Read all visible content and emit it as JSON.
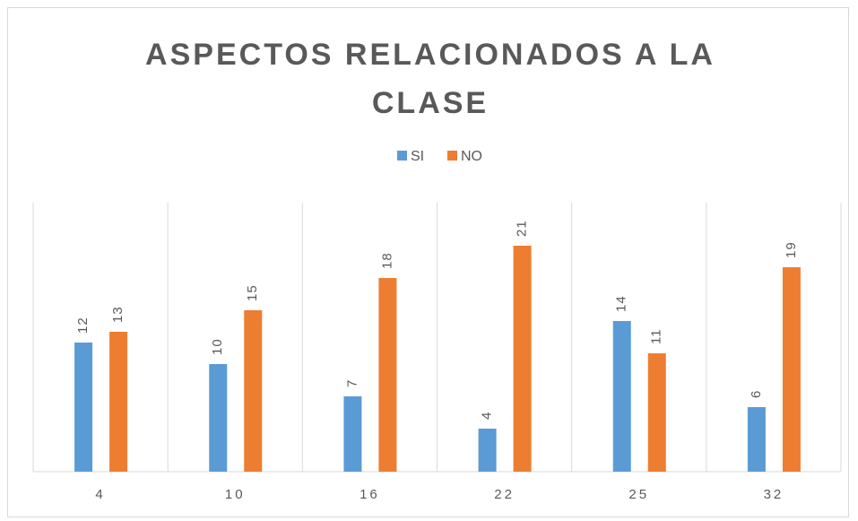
{
  "chart_data": {
    "type": "bar",
    "title": "ASPECTOS RELACIONADOS A LA CLASE",
    "categories": [
      "4",
      "10",
      "16",
      "22",
      "25",
      "32"
    ],
    "series": [
      {
        "name": "SI",
        "color": "#5b9bd5",
        "values": [
          12,
          10,
          7,
          4,
          14,
          6
        ]
      },
      {
        "name": "NO",
        "color": "#ed7d31",
        "values": [
          13,
          15,
          18,
          21,
          11,
          19
        ]
      }
    ],
    "ylim": [
      0,
      25
    ],
    "legend": "top"
  }
}
